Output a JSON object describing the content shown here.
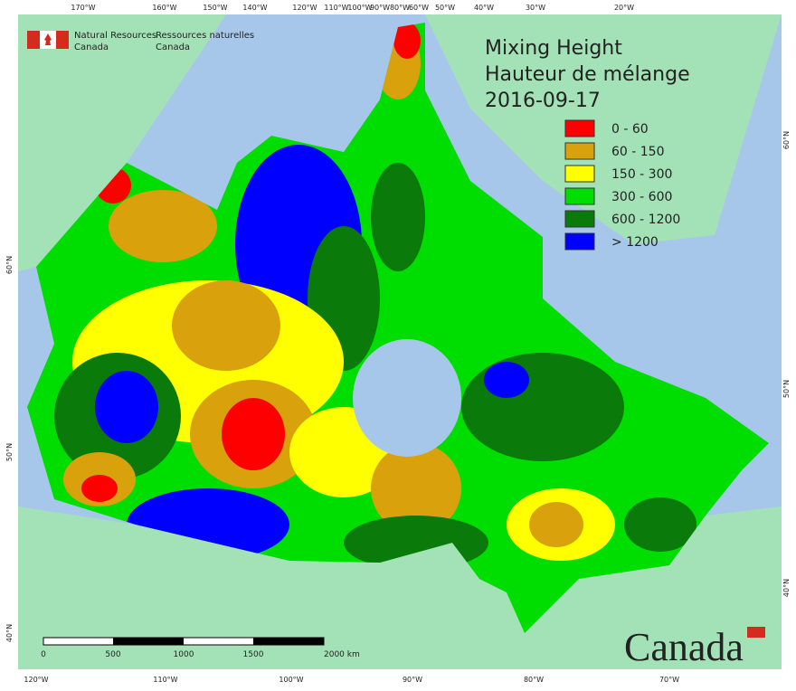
{
  "header": {
    "org_en": [
      "Natural Resources",
      "Canada"
    ],
    "org_fr": [
      "Ressources naturelles",
      "Canada"
    ]
  },
  "title": [
    "Mixing Height",
    "Hauteur de mélange",
    "2016-09-17"
  ],
  "legend": [
    {
      "label": "0 - 60",
      "color": "#ff0000"
    },
    {
      "label": "60 - 150",
      "color": "#d9a10c"
    },
    {
      "label": "150 - 300",
      "color": "#ffff00"
    },
    {
      "label": "300 - 600",
      "color": "#00dd00"
    },
    {
      "label": "600 - 1200",
      "color": "#0a7a0a"
    },
    {
      "label": "> 1200",
      "color": "#0000ff"
    }
  ],
  "top_axis_labels": [
    "170°W",
    "160°W",
    "150°W",
    "140°W",
    "120°W",
    "110°W",
    "100°W",
    "90°W",
    "80°W",
    "60°W",
    "50°W",
    "40°W",
    "30°W",
    "20°W"
  ],
  "bottom_axis_labels": [
    "120°W",
    "110°W",
    "100°W",
    "90°W",
    "80°W",
    "70°W"
  ],
  "left_axis_labels": [
    "60°N",
    "50°N",
    "40°N"
  ],
  "right_axis_labels": [
    "60°N",
    "50°N",
    "40°N"
  ],
  "scale_bar": [
    "0",
    "500",
    "1000",
    "1500",
    "2000 km"
  ],
  "wordmark": "Canada"
}
